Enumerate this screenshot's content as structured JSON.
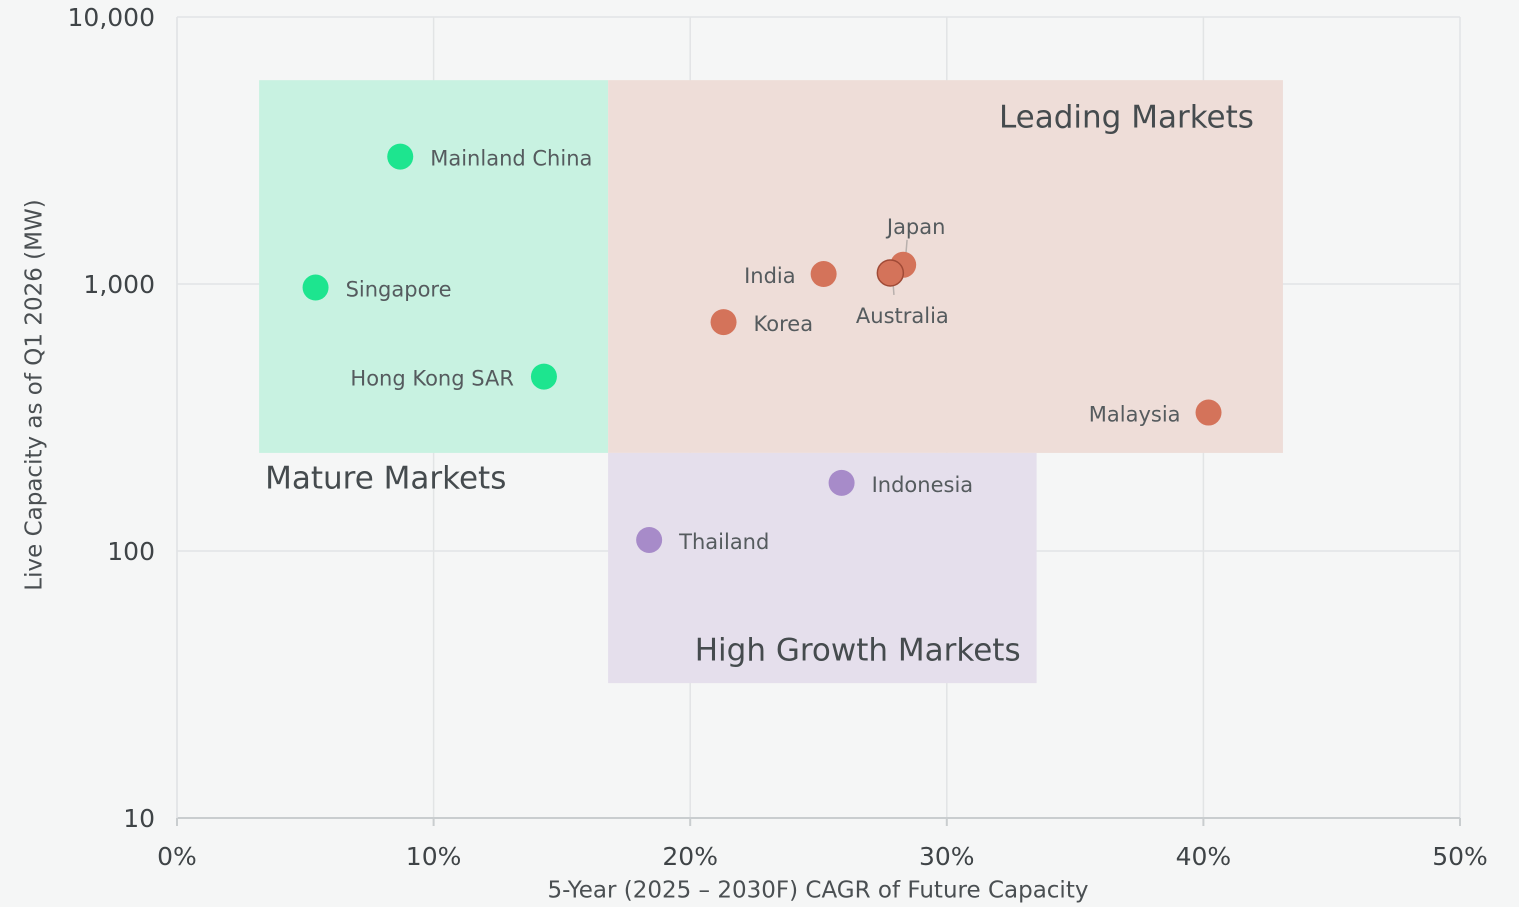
{
  "chart_data": {
    "type": "scatter",
    "x_label": "5-Year (2025 – 2030F) CAGR of Future Capacity",
    "y_label": "Live Capacity as of Q1 2026 (MW)",
    "xlim": [
      0,
      50
    ],
    "xticks": [
      {
        "value": 0,
        "label": "0%"
      },
      {
        "value": 10,
        "label": "10%"
      },
      {
        "value": 20,
        "label": "20%"
      },
      {
        "value": 30,
        "label": "30%"
      },
      {
        "value": 40,
        "label": "40%"
      },
      {
        "value": 50,
        "label": "50%"
      }
    ],
    "ylim": [
      10,
      10000
    ],
    "yticks": [
      10,
      100,
      {
        "value": 1000,
        "label": "1,000"
      },
      {
        "value": 10000,
        "label": "10,000"
      }
    ],
    "y_scale": "log",
    "grid": true,
    "series": [
      {
        "name": "Mature Markets",
        "color": "#1de58f",
        "region_color": "#c8f2e1",
        "region_xlim": [
          3.2,
          16.8
        ],
        "region_ylim": [
          233,
          5800
        ],
        "labels": [
          "Mainland China",
          "Singapore",
          "Hong Kong SAR"
        ],
        "x": [
          8.7,
          5.4,
          14.3
        ],
        "values": [
          3000,
          970,
          450
        ]
      },
      {
        "name": "Leading Markets",
        "color": "#d4735a",
        "region_color": "#eeddd8",
        "region_xlim": [
          16.8,
          43.1
        ],
        "region_ylim": [
          233,
          5800
        ],
        "labels": [
          "India",
          "Japan",
          "Australia",
          "Korea",
          "Malaysia"
        ],
        "x": [
          25.2,
          28.3,
          27.8,
          21.3,
          40.2
        ],
        "values": [
          1090,
          1180,
          1100,
          720,
          330
        ]
      },
      {
        "name": "High Growth Markets",
        "color": "#a78bc9",
        "region_color": "#e5dfec",
        "region_xlim": [
          16.8,
          33.5
        ],
        "region_ylim": [
          32,
          233
        ],
        "labels": [
          "Indonesia",
          "Thailand"
        ],
        "x": [
          25.9,
          18.4
        ],
        "values": [
          180,
          110
        ]
      }
    ]
  }
}
